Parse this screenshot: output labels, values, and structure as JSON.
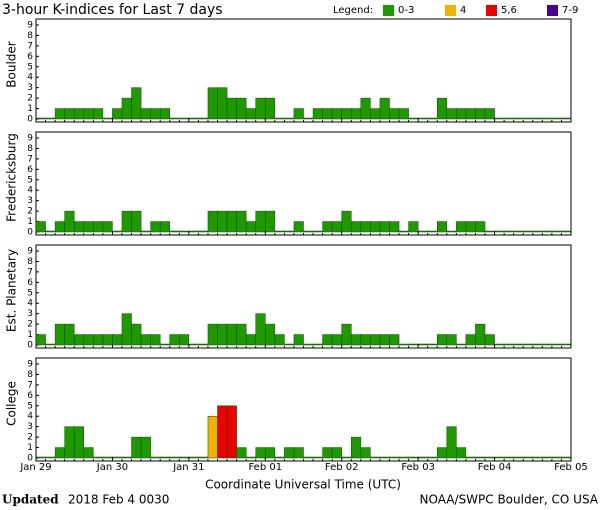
{
  "chart_data": {
    "type": "bar",
    "title": "3-hour K-indices for Last 7 days",
    "legend_title": "Legend:",
    "legend": [
      {
        "label": "0-3",
        "color": "#1e9a00"
      },
      {
        "label": "4",
        "color": "#f0b400"
      },
      {
        "label": "5,6",
        "color": "#ee0000"
      },
      {
        "label": "7-9",
        "color": "#4b0096"
      }
    ],
    "x_label": "Coordinate Universal Time (UTC)",
    "days": [
      "Jan 29",
      "Jan 30",
      "Jan 31",
      "Feb 01",
      "Feb 02",
      "Feb 03",
      "Feb 04",
      "Feb 05"
    ],
    "ylim": [
      0,
      9
    ],
    "yticks": [
      0,
      1,
      2,
      3,
      4,
      5,
      6,
      7,
      8,
      9
    ],
    "series": [
      {
        "name": "Boulder",
        "values": [
          0,
          0,
          1,
          1,
          1,
          1,
          1,
          0,
          1,
          2,
          3,
          1,
          1,
          1,
          0,
          0,
          0,
          0,
          3,
          3,
          2,
          2,
          1,
          2,
          2,
          0,
          0,
          1,
          0,
          1,
          1,
          1,
          1,
          1,
          2,
          1,
          2,
          1,
          1,
          0,
          0,
          0,
          2,
          1,
          1,
          1,
          1,
          1,
          0,
          0,
          0,
          0,
          0,
          0,
          0,
          0
        ]
      },
      {
        "name": "Fredericksburg",
        "values": [
          1,
          0,
          1,
          2,
          1,
          1,
          1,
          1,
          0,
          2,
          2,
          0,
          1,
          1,
          0,
          0,
          0,
          0,
          2,
          2,
          2,
          2,
          1,
          2,
          2,
          0,
          0,
          1,
          0,
          0,
          1,
          1,
          2,
          1,
          1,
          1,
          1,
          1,
          0,
          1,
          0,
          0,
          1,
          0,
          1,
          1,
          1,
          0,
          0,
          0,
          0,
          0,
          0,
          0,
          0,
          0
        ]
      },
      {
        "name": "Est. Planetary",
        "values": [
          1,
          0,
          2,
          2,
          1,
          1,
          1,
          1,
          1,
          3,
          2,
          1,
          1,
          0,
          1,
          1,
          0,
          0,
          2,
          2,
          2,
          2,
          1,
          3,
          2,
          1,
          0,
          1,
          0,
          0,
          1,
          1,
          2,
          1,
          1,
          1,
          1,
          1,
          0,
          0,
          0,
          0,
          1,
          1,
          0,
          1,
          2,
          1,
          0,
          0,
          0,
          0,
          0,
          0,
          0,
          0
        ]
      },
      {
        "name": "College",
        "values": [
          0,
          0,
          1,
          3,
          3,
          1,
          0,
          0,
          0,
          0,
          2,
          2,
          0,
          0,
          0,
          0,
          0,
          0,
          4,
          5,
          5,
          1,
          0,
          1,
          1,
          0,
          1,
          1,
          0,
          0,
          1,
          1,
          0,
          2,
          1,
          0,
          0,
          0,
          0,
          0,
          0,
          0,
          1,
          3,
          1,
          0,
          0,
          0,
          0,
          0,
          0,
          0,
          0,
          0,
          0,
          0
        ]
      }
    ],
    "footer_left_bold": "Updated",
    "footer_left": "2018 Feb  4 0030",
    "footer_right": "NOAA/SWPC Boulder, CO USA"
  }
}
